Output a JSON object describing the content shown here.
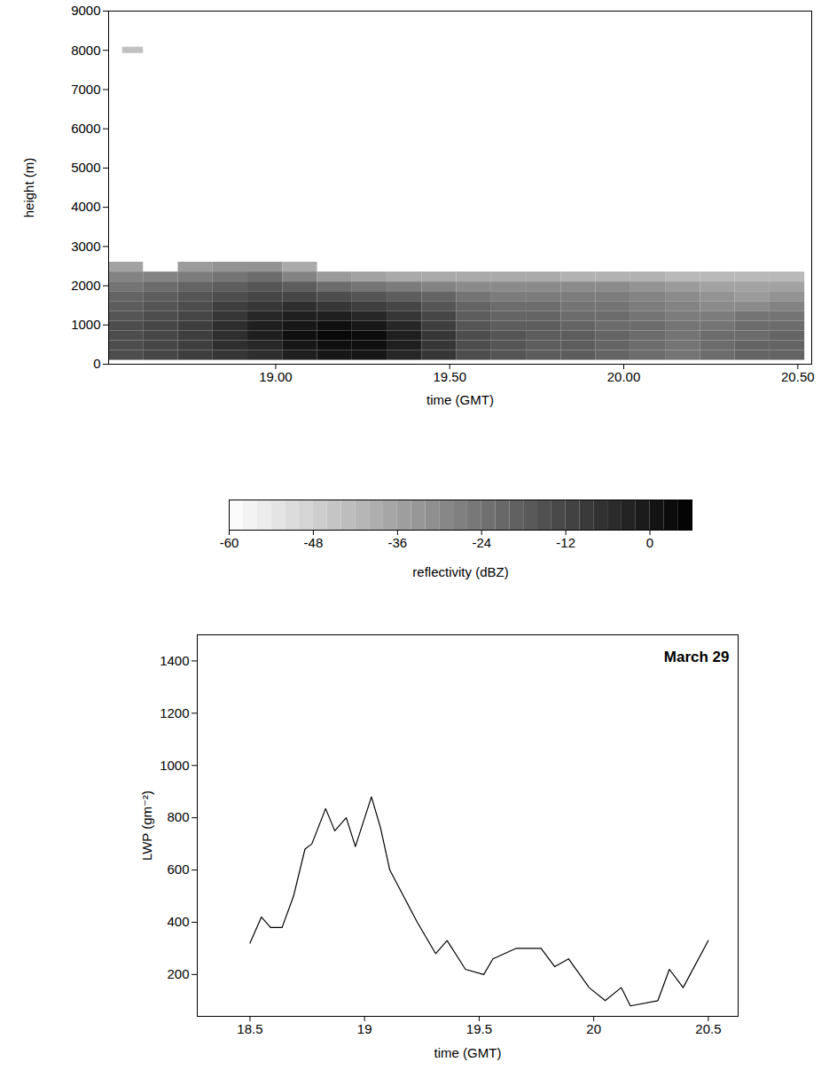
{
  "chart_data": [
    {
      "type": "heatmap",
      "x_label": "time (GMT)",
      "y_label": "height (m)",
      "xlim": [
        18.52,
        20.54
      ],
      "xticks": [
        {
          "value": 19,
          "label": "19.00"
        },
        {
          "value": 19.5,
          "label": "19.50"
        },
        {
          "value": 20,
          "label": "20.00"
        },
        {
          "value": 20.5,
          "label": "20.50"
        }
      ],
      "ylim": [
        0,
        9000
      ],
      "yticks": [
        0,
        1000,
        2000,
        3000,
        4000,
        5000,
        6000,
        7000,
        8000,
        9000
      ],
      "time_edges": [
        18.52,
        18.62,
        18.72,
        18.82,
        18.92,
        19.02,
        19.12,
        19.22,
        19.32,
        19.42,
        19.52,
        19.62,
        19.72,
        19.82,
        19.92,
        20.02,
        20.12,
        20.22,
        20.32,
        20.42,
        20.52
      ],
      "height_edges": [
        100,
        350,
        600,
        850,
        1100,
        1350,
        1600,
        1850,
        2100,
        2350,
        2600
      ],
      "cells": [
        [
          -14,
          -12,
          -10,
          -8,
          -6,
          -2,
          0,
          0,
          -4,
          -8,
          -14,
          -16,
          -18,
          -18,
          -20,
          -22,
          -24,
          -22,
          -20,
          -20
        ],
        [
          -14,
          -12,
          -10,
          -6,
          -4,
          0,
          2,
          2,
          -2,
          -8,
          -14,
          -16,
          -18,
          -18,
          -20,
          -22,
          -24,
          -22,
          -20,
          -20
        ],
        [
          -14,
          -12,
          -10,
          -6,
          -2,
          2,
          4,
          3,
          -2,
          -8,
          -14,
          -16,
          -18,
          -18,
          -20,
          -22,
          -24,
          -22,
          -22,
          -20
        ],
        [
          -14,
          -12,
          -10,
          -6,
          -2,
          0,
          2,
          0,
          -4,
          -10,
          -16,
          -18,
          -18,
          -20,
          -22,
          -22,
          -24,
          -24,
          -22,
          -22
        ],
        [
          -16,
          -14,
          -12,
          -8,
          -4,
          -2,
          -2,
          -4,
          -8,
          -12,
          -18,
          -20,
          -20,
          -22,
          -22,
          -24,
          -26,
          -26,
          -24,
          -24
        ],
        [
          -18,
          -16,
          -14,
          -10,
          -8,
          -6,
          -8,
          -10,
          -12,
          -16,
          -20,
          -22,
          -22,
          -24,
          -24,
          -26,
          -28,
          -30,
          -30,
          -28
        ],
        [
          -20,
          -18,
          -16,
          -14,
          -12,
          -12,
          -14,
          -16,
          -18,
          -20,
          -24,
          -26,
          -26,
          -26,
          -26,
          -28,
          -30,
          -32,
          -34,
          -32
        ],
        [
          -24,
          -22,
          -20,
          -18,
          -16,
          -18,
          -22,
          -24,
          -26,
          -28,
          -30,
          -30,
          -30,
          -30,
          -30,
          -32,
          -34,
          -36,
          -36,
          -36
        ],
        [
          -28,
          -28,
          -26,
          -24,
          -22,
          -28,
          -34,
          -36,
          -38,
          -38,
          -38,
          -38,
          -38,
          -40,
          -40,
          -40,
          -42,
          -42,
          -42,
          -42
        ],
        [
          -36,
          null,
          -34,
          -32,
          -32,
          -38,
          null,
          null,
          null,
          null,
          null,
          null,
          null,
          null,
          null,
          null,
          null,
          null,
          null,
          null
        ]
      ],
      "upper_patch": {
        "time_edges": [
          18.56,
          18.62
        ],
        "height_edges": [
          7920,
          8080
        ],
        "cells": [
          [
            -44
          ]
        ]
      },
      "colorbar": {
        "range": [
          -60,
          6
        ],
        "ticks": [
          -60,
          -48,
          -36,
          -24,
          -12,
          0
        ],
        "label": "reflectivity (dBZ)"
      }
    },
    {
      "type": "line",
      "annotation": "March 29",
      "x_label": "time (GMT)",
      "y_label": "LWP (gm⁻²)",
      "color": "#000000",
      "xlim": [
        18.27,
        20.63
      ],
      "xticks": [
        18.5,
        19,
        19.5,
        20,
        20.5
      ],
      "ylim": [
        40,
        1500
      ],
      "yticks": [
        200,
        400,
        600,
        800,
        1000,
        1200,
        1400
      ],
      "x": [
        18.5,
        18.55,
        18.59,
        18.64,
        18.69,
        18.74,
        18.77,
        18.83,
        18.87,
        18.92,
        18.96,
        19.03,
        19.07,
        19.11,
        19.17,
        19.23,
        19.31,
        19.36,
        19.44,
        19.52,
        19.56,
        19.66,
        19.77,
        19.83,
        19.89,
        19.98,
        20.05,
        20.12,
        20.16,
        20.28,
        20.33,
        20.39,
        20.5
      ],
      "values": [
        320,
        420,
        380,
        380,
        500,
        680,
        700,
        835,
        750,
        800,
        690,
        880,
        760,
        600,
        500,
        400,
        280,
        330,
        220,
        200,
        260,
        300,
        300,
        230,
        260,
        150,
        100,
        150,
        80,
        100,
        220,
        150,
        330
      ]
    }
  ]
}
